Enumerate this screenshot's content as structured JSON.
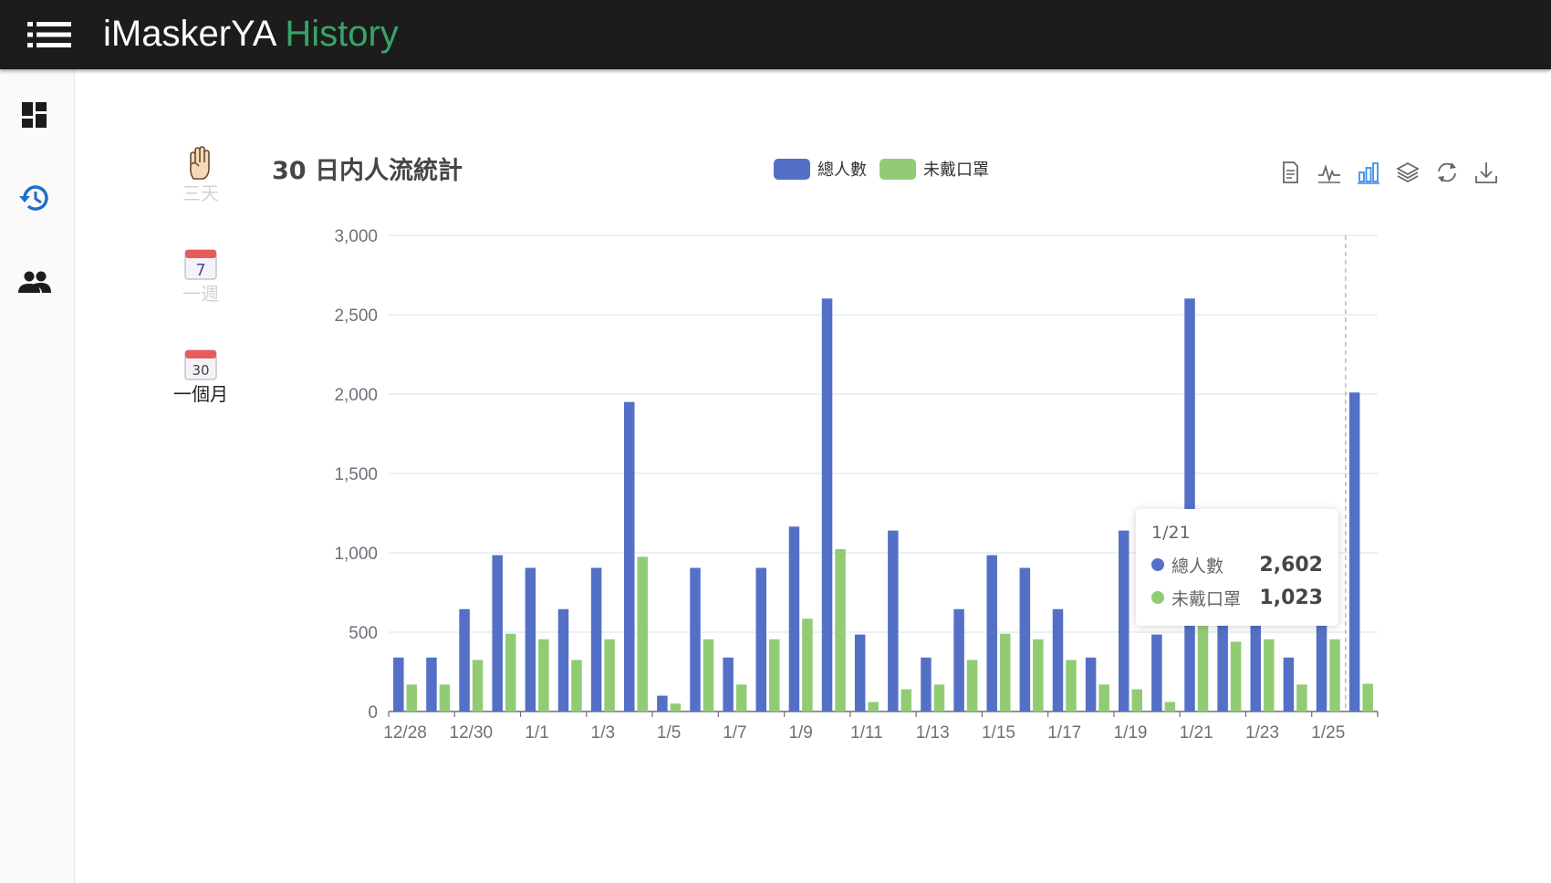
{
  "app": {
    "title_main": "iMaskerYA",
    "title_accent": "History"
  },
  "sidebar": [
    {
      "name": "dashboard-icon"
    },
    {
      "name": "history-icon"
    },
    {
      "name": "people-icon"
    }
  ],
  "ranges": [
    {
      "icon": "three-fingers-hand-icon",
      "label": "三天",
      "active": false
    },
    {
      "icon": "calendar-7-icon",
      "label": "一週",
      "active": false
    },
    {
      "icon": "calendar-30-icon",
      "label": "一個月",
      "active": true
    }
  ],
  "toolbox": [
    "data-view-icon",
    "line-chart-icon",
    "bar-chart-icon",
    "stack-icon",
    "restore-icon",
    "download-icon"
  ],
  "colors": {
    "total": "#5470c6",
    "nomask": "#91cc75",
    "accent": "#3aa36a",
    "topbar": "#1c1c1c"
  },
  "chart_data": {
    "type": "bar",
    "title": "30 日内人流統計",
    "legend_position": "top-center",
    "grid": true,
    "categories": [
      "12/28",
      "12/29",
      "12/30",
      "12/31",
      "1/1",
      "1/2",
      "1/3",
      "1/4",
      "1/5",
      "1/6",
      "1/7",
      "1/8",
      "1/9",
      "1/10",
      "1/11",
      "1/12",
      "1/13",
      "1/14",
      "1/15",
      "1/16",
      "1/17",
      "1/18",
      "1/19",
      "1/20",
      "1/21",
      "1/22",
      "1/23",
      "1/24",
      "1/25",
      "1/26"
    ],
    "series": [
      {
        "name": "總人數",
        "color": "#5470c6",
        "values": [
          340,
          340,
          645,
          985,
          905,
          645,
          905,
          1950,
          100,
          905,
          340,
          905,
          1165,
          2602,
          485,
          1140,
          340,
          645,
          985,
          905,
          645,
          340,
          1140,
          485,
          2602,
          880,
          880,
          340,
          880,
          2010
        ]
      },
      {
        "name": "未戴口罩",
        "color": "#91cc75",
        "values": [
          170,
          170,
          325,
          490,
          455,
          325,
          455,
          975,
          50,
          455,
          170,
          455,
          585,
          1023,
          60,
          140,
          170,
          325,
          490,
          455,
          325,
          170,
          140,
          60,
          1023,
          440,
          455,
          170,
          455,
          175
        ]
      }
    ],
    "ylim": [
      0,
      3000
    ],
    "yticks": [
      "0",
      "500",
      "1,000",
      "1,500",
      "2,000",
      "2,500",
      "3,000"
    ],
    "xticks_shown": [
      "12/28",
      "12/30",
      "1/1",
      "1/3",
      "1/5",
      "1/7",
      "1/9",
      "1/11",
      "1/13",
      "1/15",
      "1/17",
      "1/19",
      "1/21",
      "1/23",
      "1/25"
    ]
  },
  "tooltip": {
    "title": "1/21",
    "rows": [
      {
        "name": "總人數",
        "value": "2,602"
      },
      {
        "name": "未戴口罩",
        "value": "1,023"
      }
    ]
  }
}
